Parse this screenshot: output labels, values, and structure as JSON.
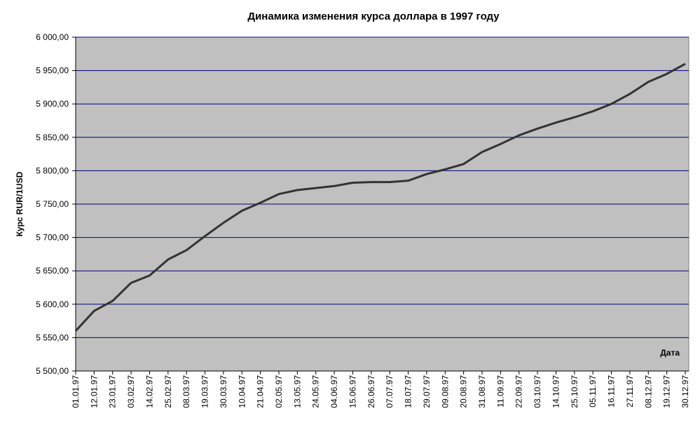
{
  "chart_data": {
    "type": "line",
    "title": "Динамика изменения курса доллара в 1997 году",
    "y_label": "Курс RUR/1USD",
    "x_label": "Дата",
    "categories": [
      "01.01.97",
      "12.01.97",
      "23.01.97",
      "03.02.97",
      "14.02.97",
      "25.02.97",
      "08.03.97",
      "19.03.97",
      "30.03.97",
      "10.04.97",
      "21.04.97",
      "02.05.97",
      "13.05.97",
      "24.05.97",
      "04.06.97",
      "15.06.97",
      "26.06.97",
      "07.07.97",
      "18.07.97",
      "29.07.97",
      "09.08.97",
      "20.08.97",
      "31.08.97",
      "11.09.97",
      "22.09.97",
      "03.10.97",
      "14.10.97",
      "25.10.97",
      "05.11.97",
      "16.11.97",
      "27.11.97",
      "08.12.97",
      "19.12.97",
      "30.12.97"
    ],
    "values": [
      5560,
      5590,
      5605,
      5632,
      5643,
      5667,
      5681,
      5702,
      5722,
      5740,
      5752,
      5765,
      5771,
      5774,
      5777,
      5782,
      5783,
      5783,
      5785,
      5795,
      5802,
      5810,
      5828,
      5840,
      5853,
      5863,
      5872,
      5880,
      5889,
      5900,
      5915,
      5933,
      5945,
      5960
    ],
    "color": "#333333",
    "plot_background": "#c0c0c0",
    "grid_color": "#000080",
    "grid": true,
    "ylim": [
      5500,
      6000
    ],
    "yticks": [
      {
        "value": 5500,
        "label": "5 500,00"
      },
      {
        "value": 5550,
        "label": "5 550,00"
      },
      {
        "value": 5600,
        "label": "5 600,00"
      },
      {
        "value": 5650,
        "label": "5 650,00"
      },
      {
        "value": 5700,
        "label": "5 700,00"
      },
      {
        "value": 5750,
        "label": "5 750,00"
      },
      {
        "value": 5800,
        "label": "5 800,00"
      },
      {
        "value": 5850,
        "label": "5 850,00"
      },
      {
        "value": 5900,
        "label": "5 900,00"
      },
      {
        "value": 5950,
        "label": "5 950,00"
      },
      {
        "value": 6000,
        "label": "6 000,00"
      }
    ]
  }
}
